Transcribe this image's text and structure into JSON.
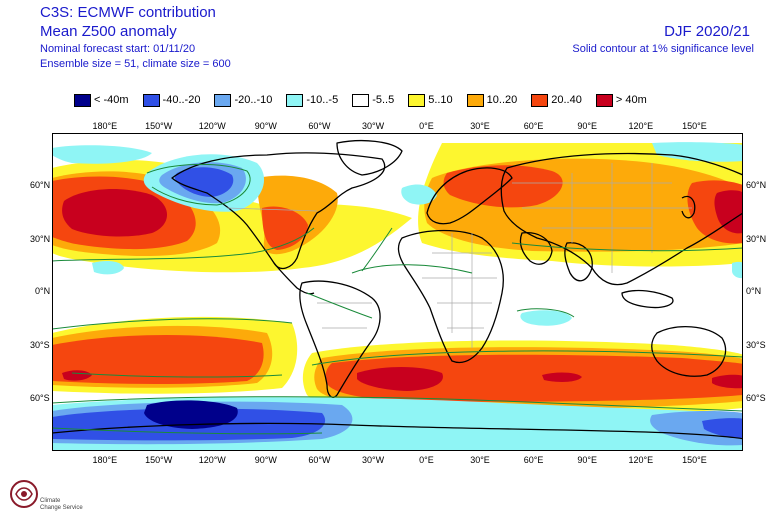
{
  "header": {
    "title_line1": "C3S: ECMWF contribution",
    "title_line2": "Mean Z500 anomaly",
    "nominal_start": "Nominal forecast start: 01/11/20",
    "ensemble_size": "Ensemble size = 51, climate size = 600",
    "season": "DJF 2020/21",
    "significance_note": "Solid contour at 1% significance level"
  },
  "legend": [
    {
      "label": "< -40m",
      "color": "#00008b"
    },
    {
      "label": "-40..-20",
      "color": "#3050e6"
    },
    {
      "label": "-20..-10",
      "color": "#6aa8f0"
    },
    {
      "label": "-10..-5",
      "color": "#8ff5f5"
    },
    {
      "label": "-5..5",
      "color": "#ffffff"
    },
    {
      "label": "5..10",
      "color": "#fdf62f"
    },
    {
      "label": "10..20",
      "color": "#fdaa0a"
    },
    {
      "label": "20..40",
      "color": "#f5460f"
    },
    {
      "label": "> 40m",
      "color": "#c8001e"
    }
  ],
  "axes": {
    "longitude_labels": [
      "180°E",
      "150°W",
      "120°W",
      "90°W",
      "60°W",
      "30°W",
      "0°E",
      "30°E",
      "60°E",
      "90°E",
      "120°E",
      "150°E"
    ],
    "latitude_labels": [
      "60°N",
      "30°N",
      "0°N",
      "30°S",
      "60°S"
    ]
  },
  "map_colors": {
    "ocean": "#ffffff",
    "land_outline": "#000000",
    "country_borders": "#aaaaaa",
    "sig_contour": "#1a8a3a"
  },
  "logo": {
    "text_line1": "Climate",
    "text_line2": "Change Service"
  }
}
